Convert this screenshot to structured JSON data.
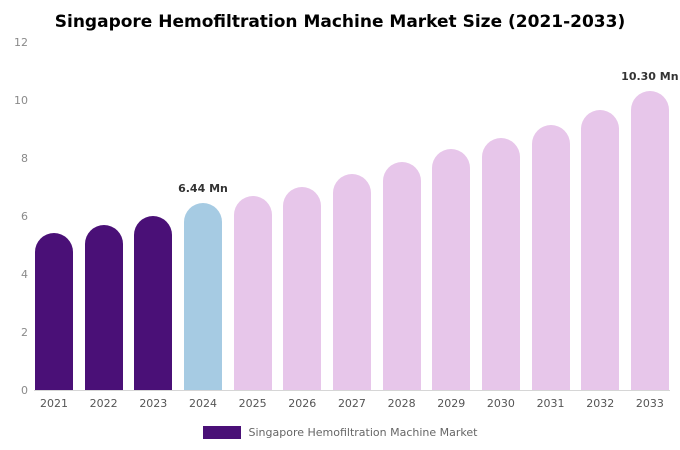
{
  "chart_data": {
    "type": "bar",
    "title": "Singapore Hemofiltration Machine Market Size (2021-2033)",
    "xlabel": "",
    "ylabel": "",
    "ylim": [
      0,
      12
    ],
    "yticks": [
      0,
      2,
      4,
      6,
      8,
      10,
      12
    ],
    "grid": false,
    "categories": [
      "2021",
      "2022",
      "2023",
      "2024",
      "2025",
      "2026",
      "2027",
      "2028",
      "2029",
      "2030",
      "2031",
      "2032",
      "2033"
    ],
    "values": [
      5.4,
      5.7,
      6.0,
      6.44,
      6.7,
      7.0,
      7.45,
      7.85,
      8.3,
      8.7,
      9.15,
      9.65,
      10.3
    ],
    "bar_colors": [
      "#4a1077",
      "#4a1077",
      "#4a1077",
      "#a6cbe3",
      "#e7c6ea",
      "#e7c6ea",
      "#e7c6ea",
      "#e7c6ea",
      "#e7c6ea",
      "#e7c6ea",
      "#e7c6ea",
      "#e7c6ea",
      "#e7c6ea"
    ],
    "annotations": [
      {
        "category": "2024",
        "text": "6.44 Mn"
      },
      {
        "category": "2033",
        "text": "10.30 Mn"
      }
    ],
    "legend": {
      "label": "Singapore Hemofiltration Machine Market",
      "position": "bottom",
      "color": "#4a1077"
    }
  }
}
